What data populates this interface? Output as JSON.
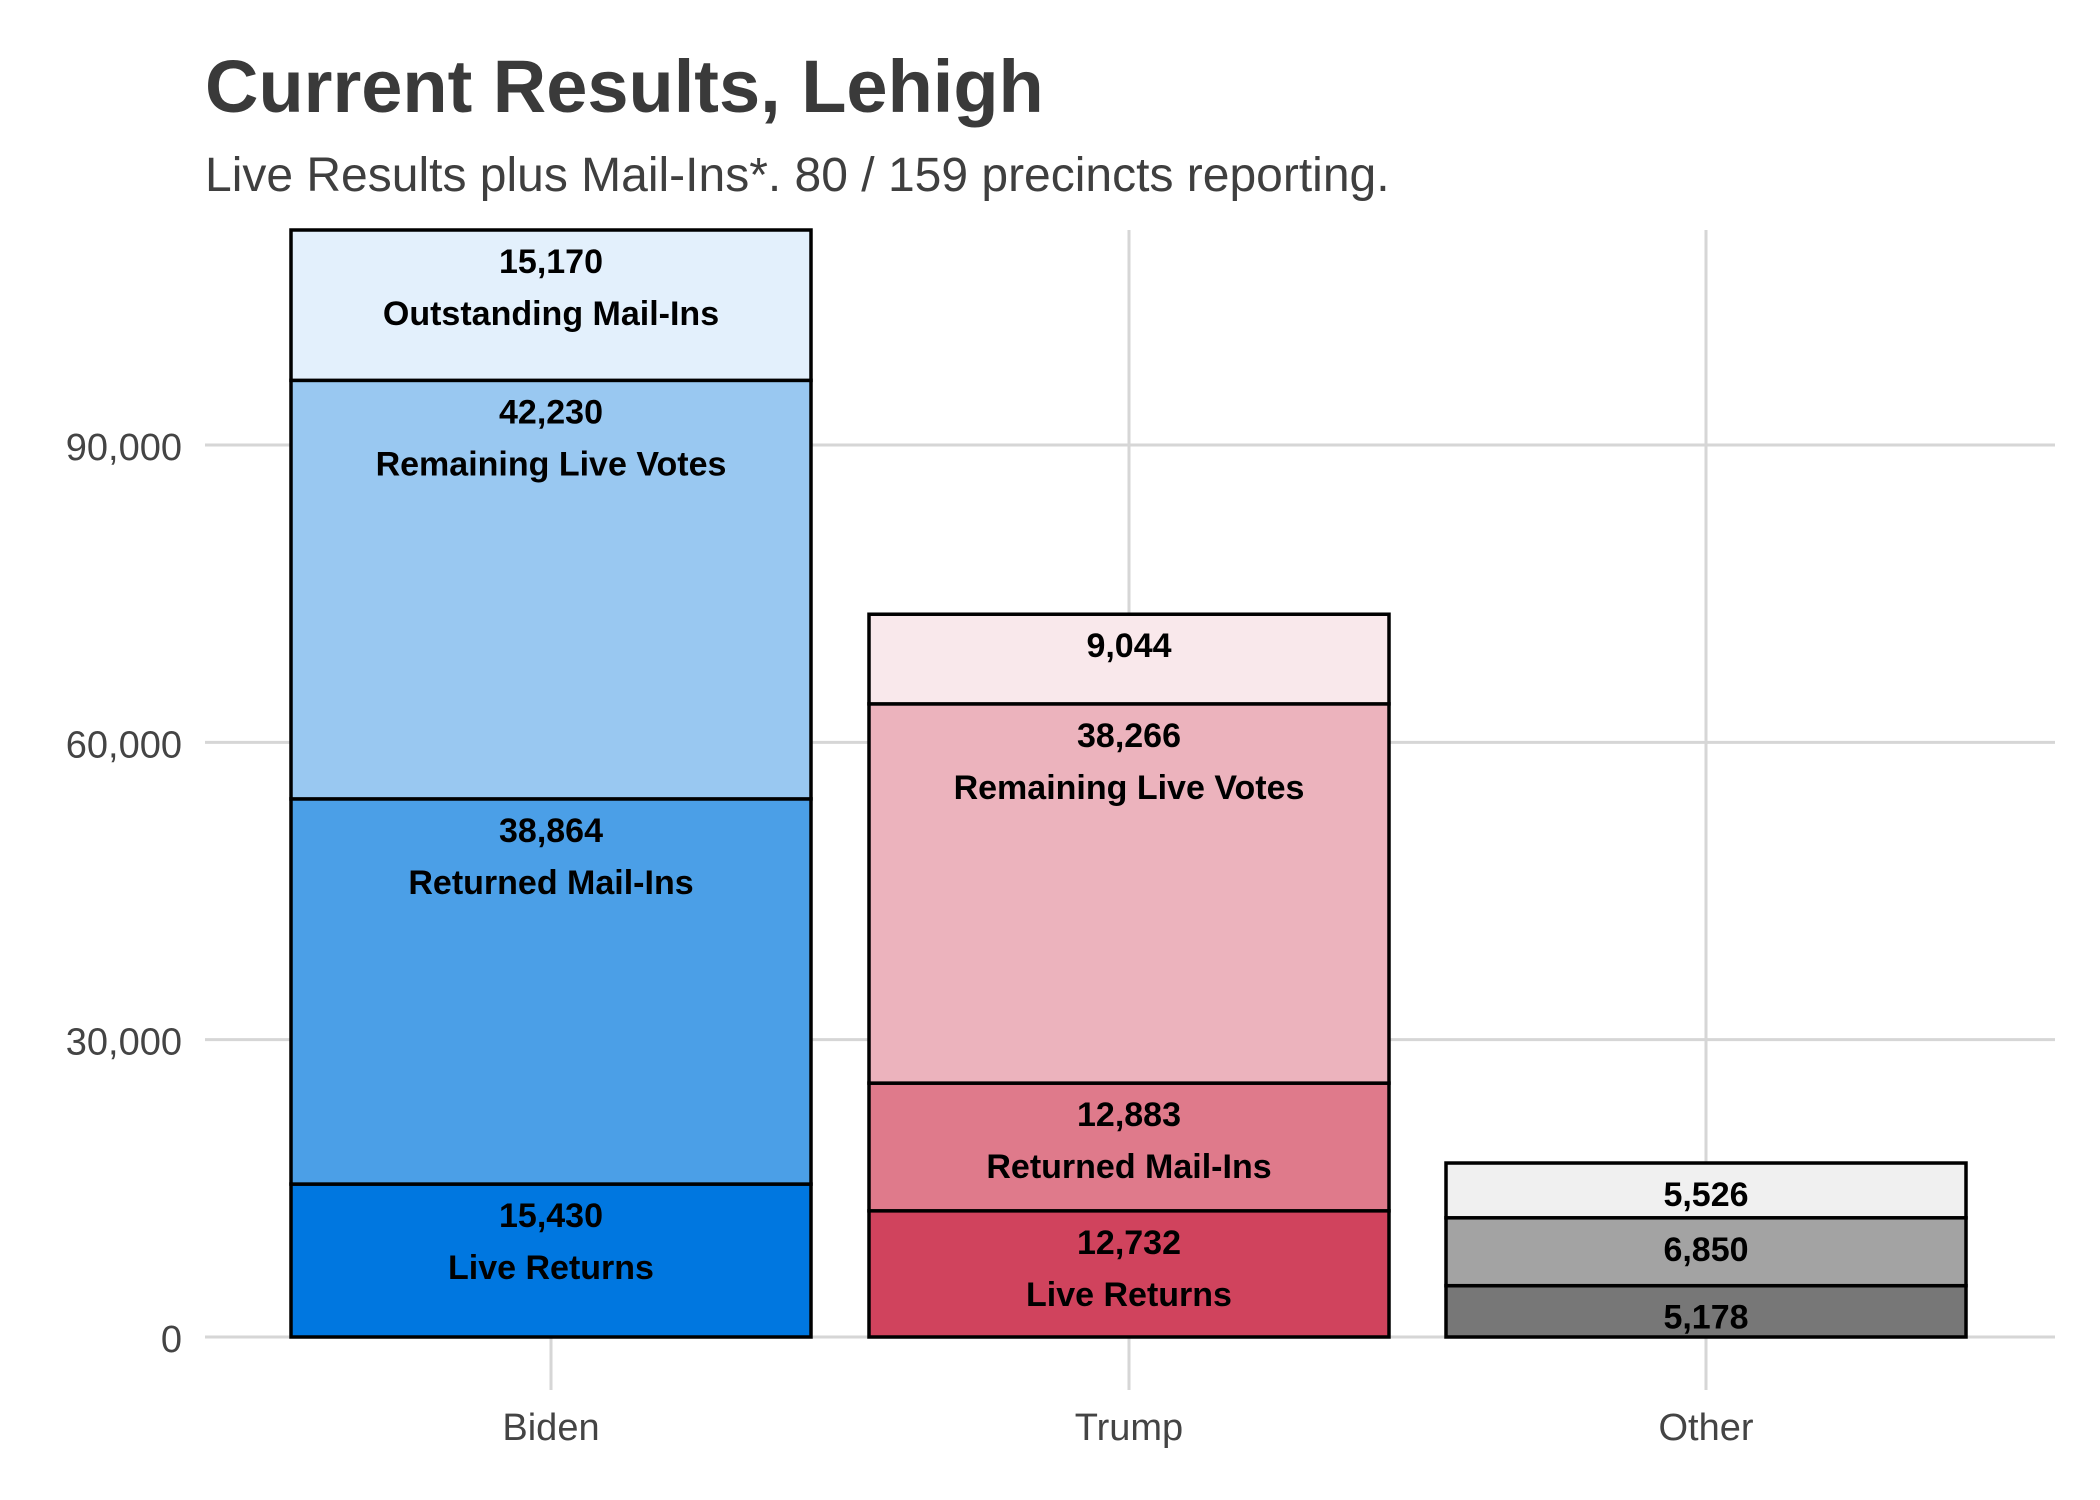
{
  "chart_data": {
    "type": "bar",
    "stacked": true,
    "title": "Current Results, Lehigh",
    "subtitle": "Live Results plus Mail-Ins*. 80 / 159 precincts reporting.",
    "xlabel": "",
    "ylabel": "",
    "categories": [
      "Biden",
      "Trump",
      "Other"
    ],
    "ylim": [
      0,
      111694
    ],
    "yticks": [
      0,
      30000,
      60000,
      90000
    ],
    "ytick_labels": [
      "0",
      "30,000",
      "60,000",
      "90,000"
    ],
    "grid": true,
    "legend": "none",
    "series": [
      {
        "name": "Live Returns",
        "values": [
          15430,
          12732,
          5178
        ],
        "value_labels": [
          "15,430",
          "12,732",
          "5,178"
        ],
        "segment_labels": [
          "Live Returns",
          "Live Returns",
          ""
        ],
        "colors": [
          "#0077e0",
          "#d0435d",
          "#777777"
        ]
      },
      {
        "name": "Returned Mail-Ins",
        "values": [
          38864,
          12883,
          6850
        ],
        "value_labels": [
          "38,864",
          "12,883",
          "6,850"
        ],
        "segment_labels": [
          "Returned Mail-Ins",
          "Returned Mail-Ins",
          ""
        ],
        "colors": [
          "#4b9fe7",
          "#df7a8b",
          "#a3a3a3"
        ]
      },
      {
        "name": "Remaining Live Votes",
        "values": [
          42230,
          38266,
          0
        ],
        "value_labels": [
          "42,230",
          "38,266",
          ""
        ],
        "segment_labels": [
          "Remaining Live Votes",
          "Remaining Live Votes",
          ""
        ],
        "colors": [
          "#99c8f1",
          "#ecb3bd",
          "#cccccc"
        ]
      },
      {
        "name": "Outstanding Mail-Ins",
        "values": [
          15170,
          9044,
          5526
        ],
        "value_labels": [
          "15,170",
          "9,044",
          "5,526"
        ],
        "segment_labels": [
          "Outstanding Mail-Ins",
          "",
          ""
        ],
        "colors": [
          "#e3f0fc",
          "#f9e8eb",
          "#f0f0f0"
        ]
      }
    ]
  }
}
